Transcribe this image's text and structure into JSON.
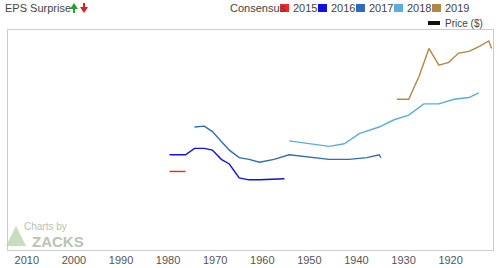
{
  "chart_data": {
    "type": "line",
    "header": "EPS Surprise",
    "legend_title": "Consensus",
    "price_label": "Price ($)",
    "watermark": [
      "Charts by",
      "ZACKS"
    ],
    "xlim": [
      2014,
      1911
    ],
    "xticks": [
      2010,
      2000,
      1990,
      1980,
      1970,
      1960,
      1950,
      1940,
      1930,
      1920
    ],
    "ylim": [
      0,
      100
    ],
    "tick_labels": "x",
    "series": [
      {
        "name": "2015",
        "color": "#ff2020",
        "x": [
          1979.7,
          1976.3
        ],
        "values": [
          35.7,
          35.7
        ]
      },
      {
        "name": "2016",
        "color": "#1010e0",
        "x": [
          1979.7,
          1976.3,
          1974.4,
          1972.3,
          1970.6,
          1968.7,
          1967.0,
          1964.9,
          1962.8,
          1960.6,
          1955.3
        ],
        "values": [
          43.3,
          43.3,
          46.2,
          46.2,
          45.4,
          41.2,
          39.1,
          32.8,
          31.9,
          31.9,
          32.4
        ]
      },
      {
        "name": "2017",
        "color": "#2f6db5",
        "x": [
          1974.4,
          1972.3,
          1970.6,
          1968.7,
          1967.0,
          1964.9,
          1962.8,
          1960.6,
          1957.5,
          1954.3,
          1950.0,
          1945.8,
          1941.6,
          1937.8,
          1935.2,
          1934.8
        ],
        "values": [
          55.9,
          56.3,
          53.8,
          49.6,
          45.4,
          42.0,
          41.2,
          39.9,
          41.2,
          43.3,
          42.4,
          41.2,
          41.2,
          42.0,
          43.3,
          42.0
        ]
      },
      {
        "name": "2018",
        "color": "#5aaede",
        "x": [
          1954.3,
          1950.0,
          1945.8,
          1942.6,
          1939.4,
          1935.2,
          1932.0,
          1928.9,
          1925.7,
          1922.5,
          1919.3,
          1916.1,
          1914.0
        ],
        "values": [
          49.6,
          48.3,
          47.1,
          48.3,
          52.9,
          55.9,
          59.2,
          61.3,
          66.4,
          66.4,
          68.5,
          69.3,
          71.4
        ]
      },
      {
        "name": "2019",
        "color": "#b5864a",
        "x": [
          1931.4,
          1928.9,
          1926.7,
          1924.6,
          1922.5,
          1920.4,
          1918.3,
          1916.1,
          1914.0,
          1911.9,
          1911.3
        ],
        "values": [
          68.5,
          68.5,
          79.0,
          91.6,
          84.0,
          85.3,
          89.5,
          90.3,
          92.4,
          95.0,
          91.6
        ]
      }
    ]
  }
}
